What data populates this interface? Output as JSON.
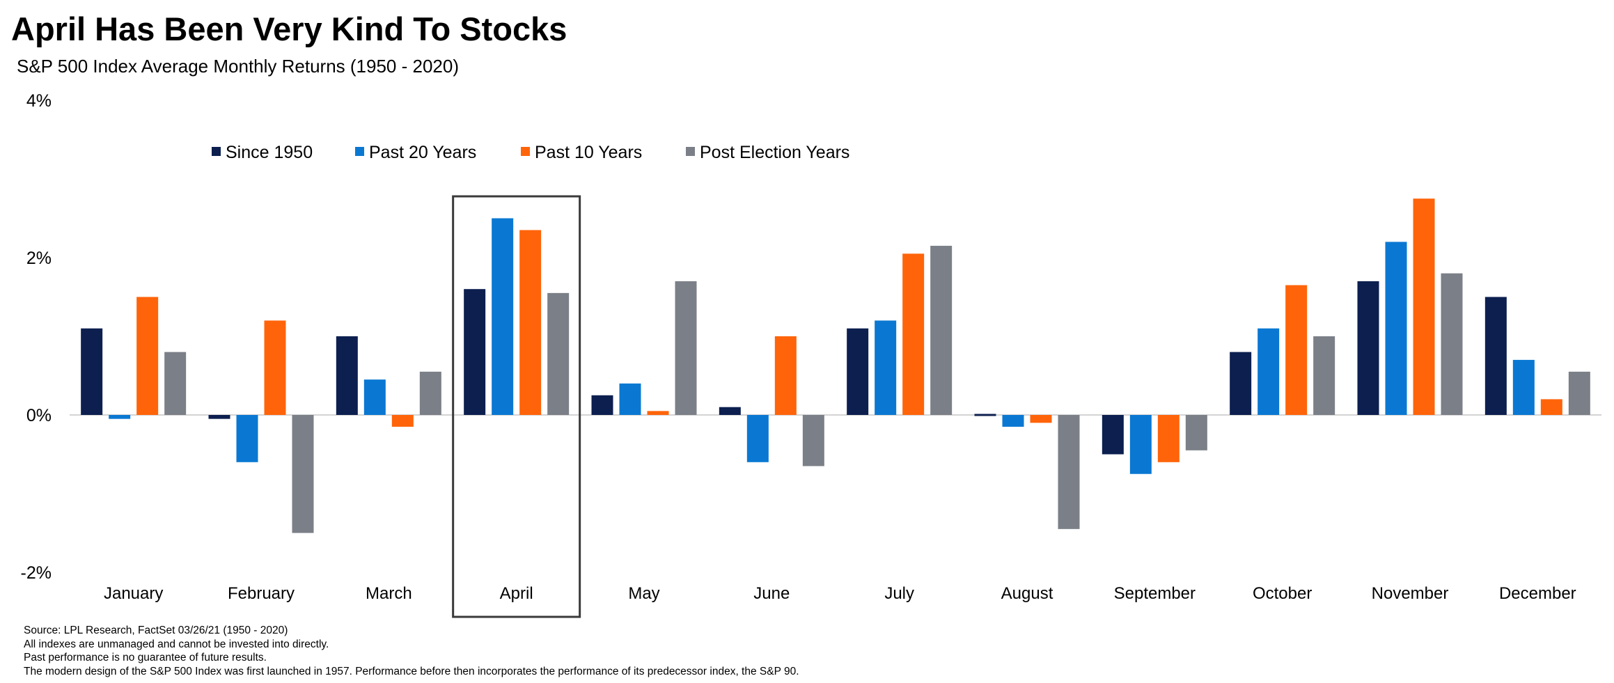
{
  "title": "April Has Been Very Kind To Stocks",
  "subtitle": "S&P 500 Index Average Monthly Returns (1950 - 2020)",
  "footnotes": [
    "Source: LPL Research, FactSet 03/26/21  (1950 - 2020)",
    "All indexes are unmanaged  and cannot be invested  into directly.",
    "Past performance is no guarantee of future results.",
    "The modern design of the S&P 500 Index was first launched  in 1957. Performance before then  incorporates the performance of its  predecessor index, the S&P 90."
  ],
  "colors": {
    "Since 1950": "#0c1f4f",
    "Past 20 Years": "#0a78d2",
    "Past 10 Years": "#ff640a",
    "Post Election Years": "#7b7f87"
  },
  "chart_data": {
    "type": "bar",
    "title": "April Has Been Very Kind To Stocks",
    "subtitle": "S&P 500 Index Average Monthly Returns (1950 - 2020)",
    "categories": [
      "January",
      "February",
      "March",
      "April",
      "May",
      "June",
      "July",
      "August",
      "September",
      "October",
      "November",
      "December"
    ],
    "series": [
      {
        "name": "Since 1950",
        "values": [
          1.1,
          -0.05,
          1.0,
          1.6,
          0.25,
          0.1,
          1.1,
          0.0,
          -0.5,
          0.8,
          1.7,
          1.5
        ]
      },
      {
        "name": "Past 20 Years",
        "values": [
          -0.05,
          -0.6,
          0.45,
          2.5,
          0.4,
          -0.6,
          1.2,
          -0.15,
          -0.75,
          1.1,
          2.2,
          0.7
        ]
      },
      {
        "name": "Past 10 Years",
        "values": [
          1.5,
          1.2,
          -0.15,
          2.35,
          0.05,
          1.0,
          2.05,
          -0.1,
          -0.6,
          1.65,
          2.75,
          0.2
        ]
      },
      {
        "name": "Post Election Years",
        "values": [
          0.8,
          -1.5,
          0.55,
          1.55,
          1.7,
          -0.65,
          2.15,
          -1.45,
          -0.45,
          1.0,
          1.8,
          0.55
        ]
      }
    ],
    "yticks": [
      "4%",
      "2%",
      "0%",
      "-2%"
    ],
    "ylim": [
      -2,
      4
    ],
    "legend_position": "top",
    "highlight_category": "April",
    "grid": false
  }
}
